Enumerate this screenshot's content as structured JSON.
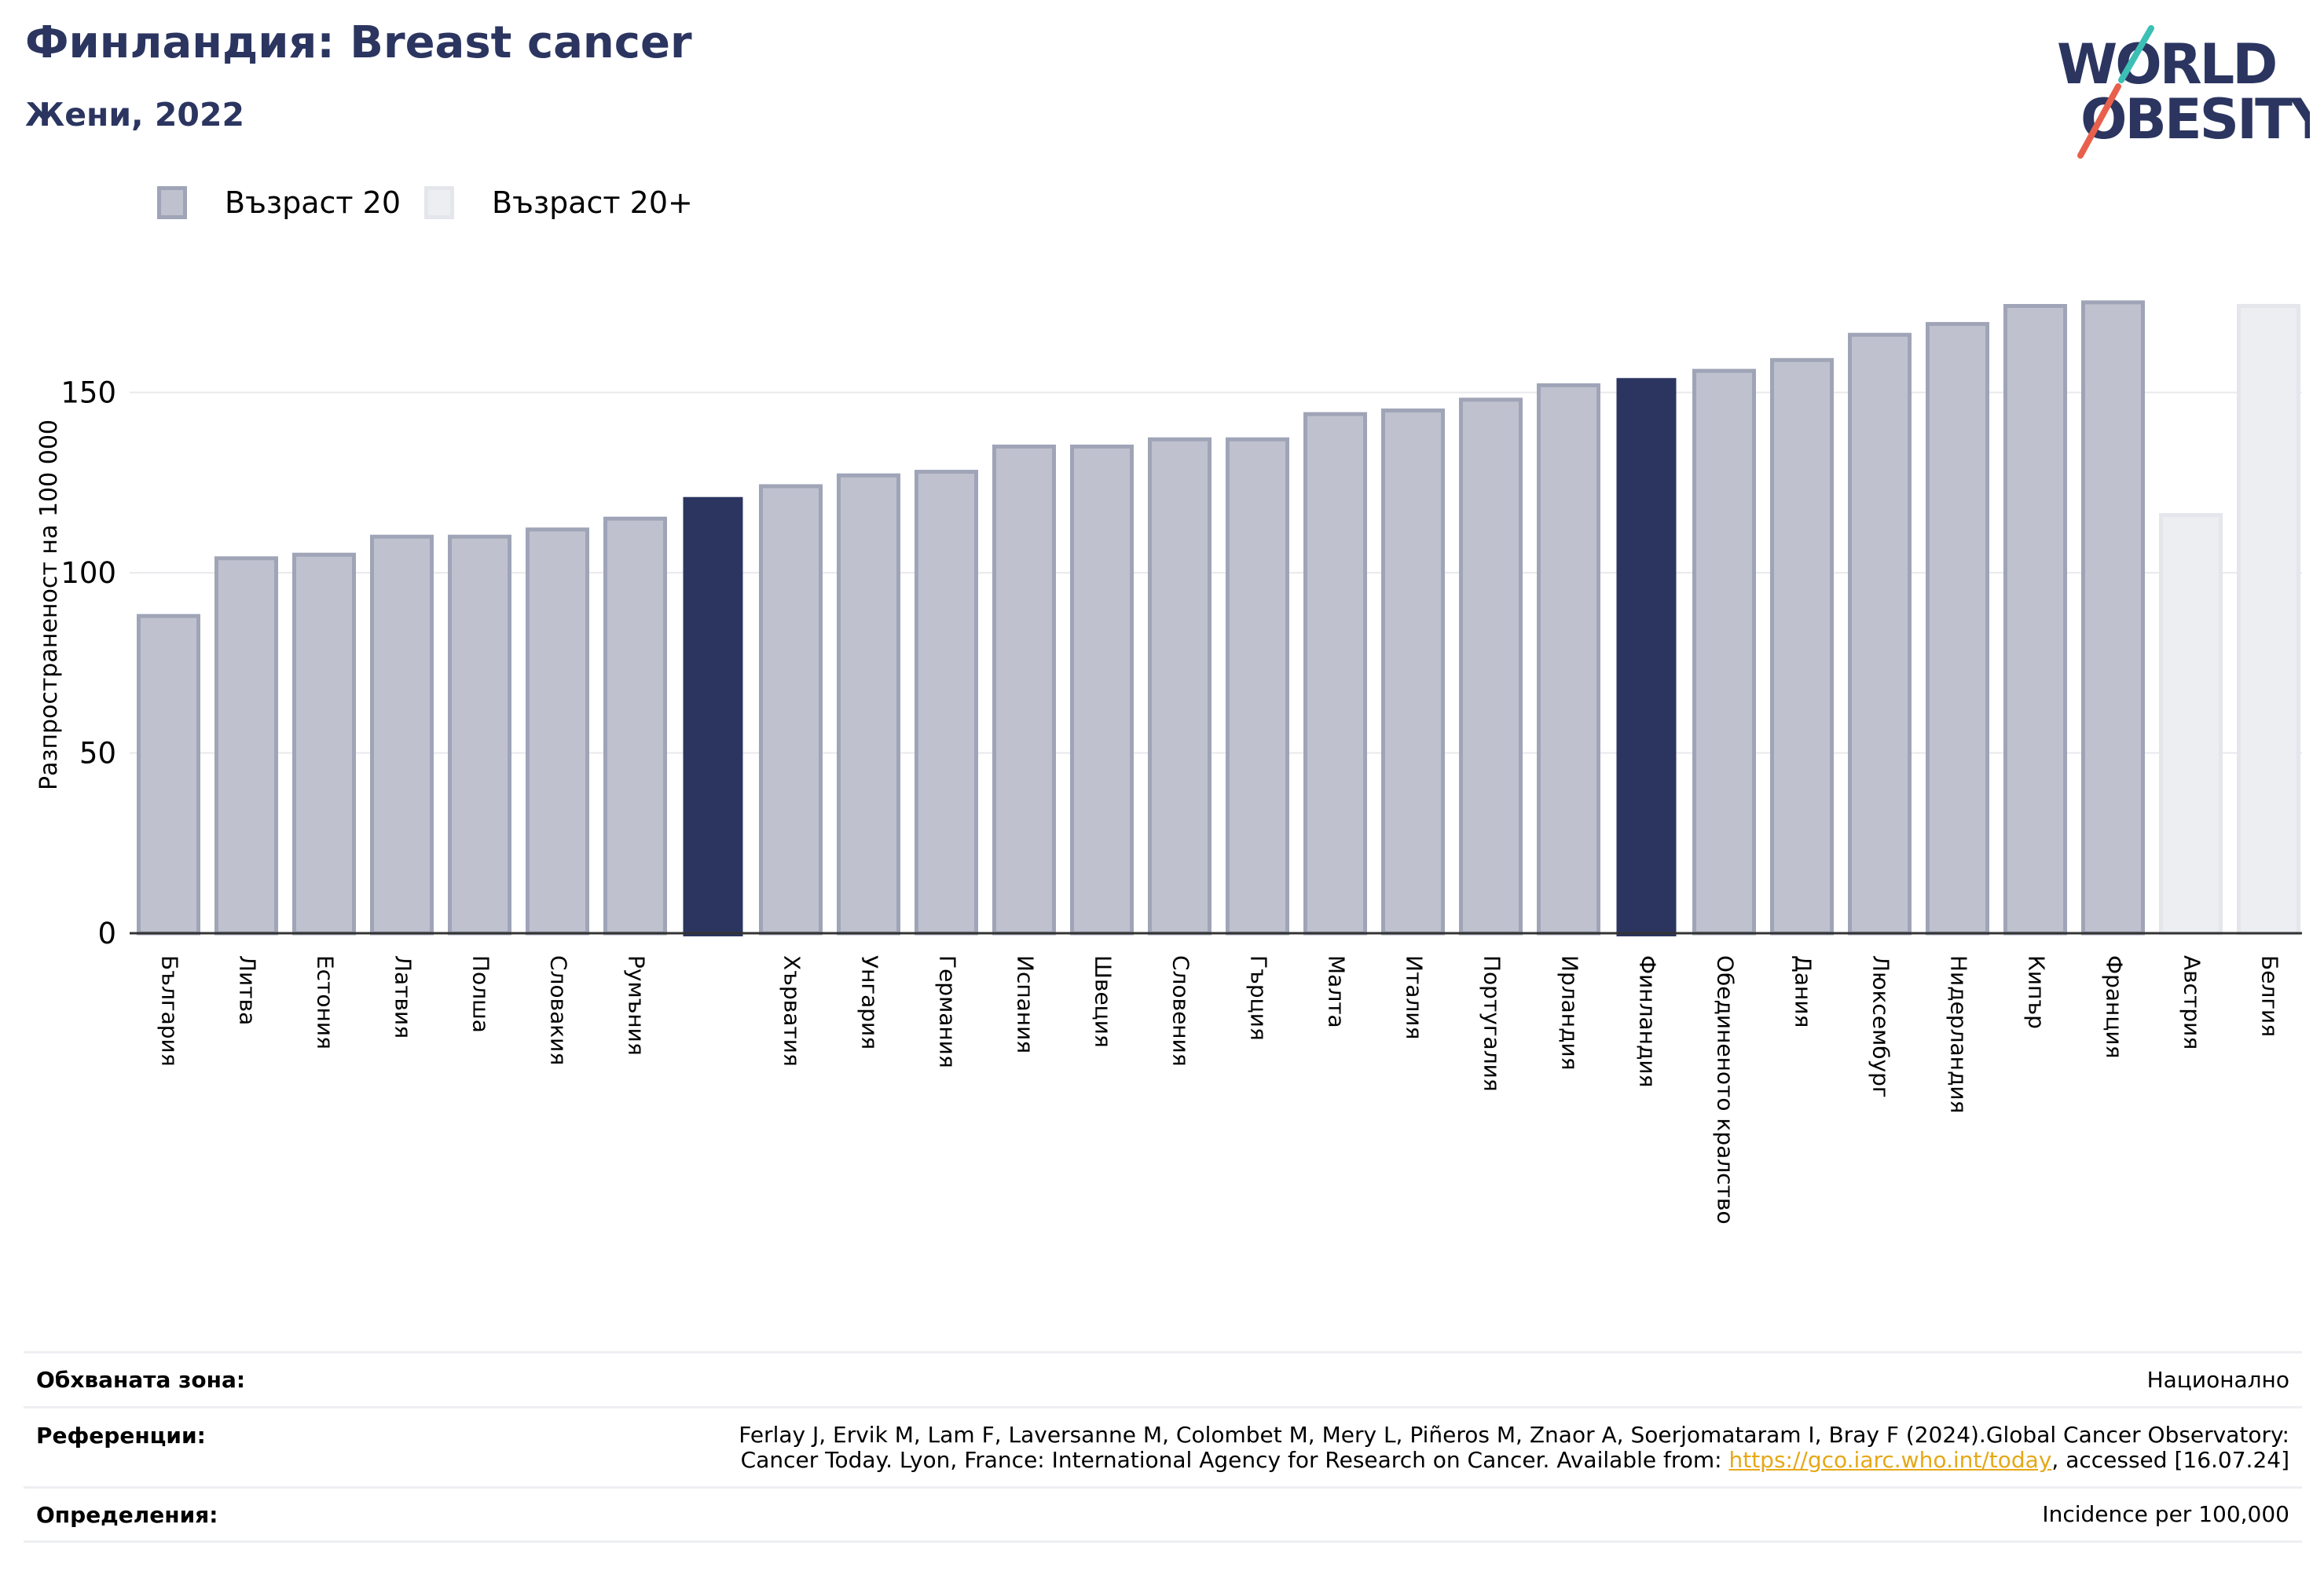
{
  "title": "Финландия: Breast cancer",
  "subtitle": "Жени, 2022",
  "logo": {
    "line1": "WORLD",
    "line2": "OBESITY"
  },
  "colors": {
    "title": "#2b3560",
    "bar_age20": "#bfc2ce",
    "bar_age20_border": "#9fa4b7",
    "bar_age20plus": "#eceef2",
    "bar_age20plus_border": "#e4e6ec",
    "highlight": "#2b3560",
    "logo_dark": "#2b3560",
    "logo_teal": "#3cbfb4",
    "logo_red": "#e8604c",
    "link": "#e6a817"
  },
  "legend": [
    {
      "label": "Възраст 20",
      "style": "age20"
    },
    {
      "label": "Възраст 20+",
      "style": "age20plus"
    }
  ],
  "chart_data": {
    "type": "bar",
    "ylabel": "Разпространеност  на 100 000",
    "ylim": [
      0,
      185
    ],
    "yticks": [
      0,
      50,
      100,
      150
    ],
    "grid": true,
    "categories": [
      "България",
      "Литва",
      "Естония",
      "Латвия",
      "Полша",
      "Словакия",
      "Румъния",
      "",
      "Хърватия",
      "Унгария",
      "Германия",
      "Испания",
      "Швеция",
      "Словения",
      "Гърция",
      "Малта",
      "Италия",
      "Португалия",
      "Ирландия",
      "Финландия",
      "Обединеното кралство",
      "Дания",
      "Люксембург",
      "Нидерландия",
      "Кипър",
      "Франция",
      "Австрия",
      "Белгия"
    ],
    "values": [
      88,
      104,
      105,
      110,
      110,
      112,
      115,
      121,
      124,
      127,
      128,
      135,
      135,
      137,
      137,
      144,
      145,
      148,
      152,
      154,
      156,
      159,
      166,
      169,
      174,
      175,
      116,
      174
    ],
    "styles": [
      "age20",
      "age20",
      "age20",
      "age20",
      "age20",
      "age20",
      "age20",
      "highlight",
      "age20",
      "age20",
      "age20",
      "age20",
      "age20",
      "age20",
      "age20",
      "age20",
      "age20",
      "age20",
      "age20",
      "highlight",
      "age20",
      "age20",
      "age20",
      "age20",
      "age20",
      "age20",
      "age20plus",
      "age20plus"
    ]
  },
  "footer": {
    "coverage_label": "Обхваната зона:",
    "coverage_value": "Национално",
    "references_label": "Референции:",
    "references_line1": "Ferlay J, Ervik M, Lam F, Laversanne M, Colombet M, Mery L, Piñeros M, Znaor A, Soerjomataram I, Bray F (2024).Global Cancer Observatory:",
    "references_line2_pre": "Cancer Today. Lyon, France: International Agency for Research on Cancer. Available from: ",
    "references_link": "https://gco.iarc.who.int/today",
    "references_line2_post": ", accessed [16.07.24]",
    "definitions_label": "Определения:",
    "definitions_value": "Incidence per 100,000"
  }
}
